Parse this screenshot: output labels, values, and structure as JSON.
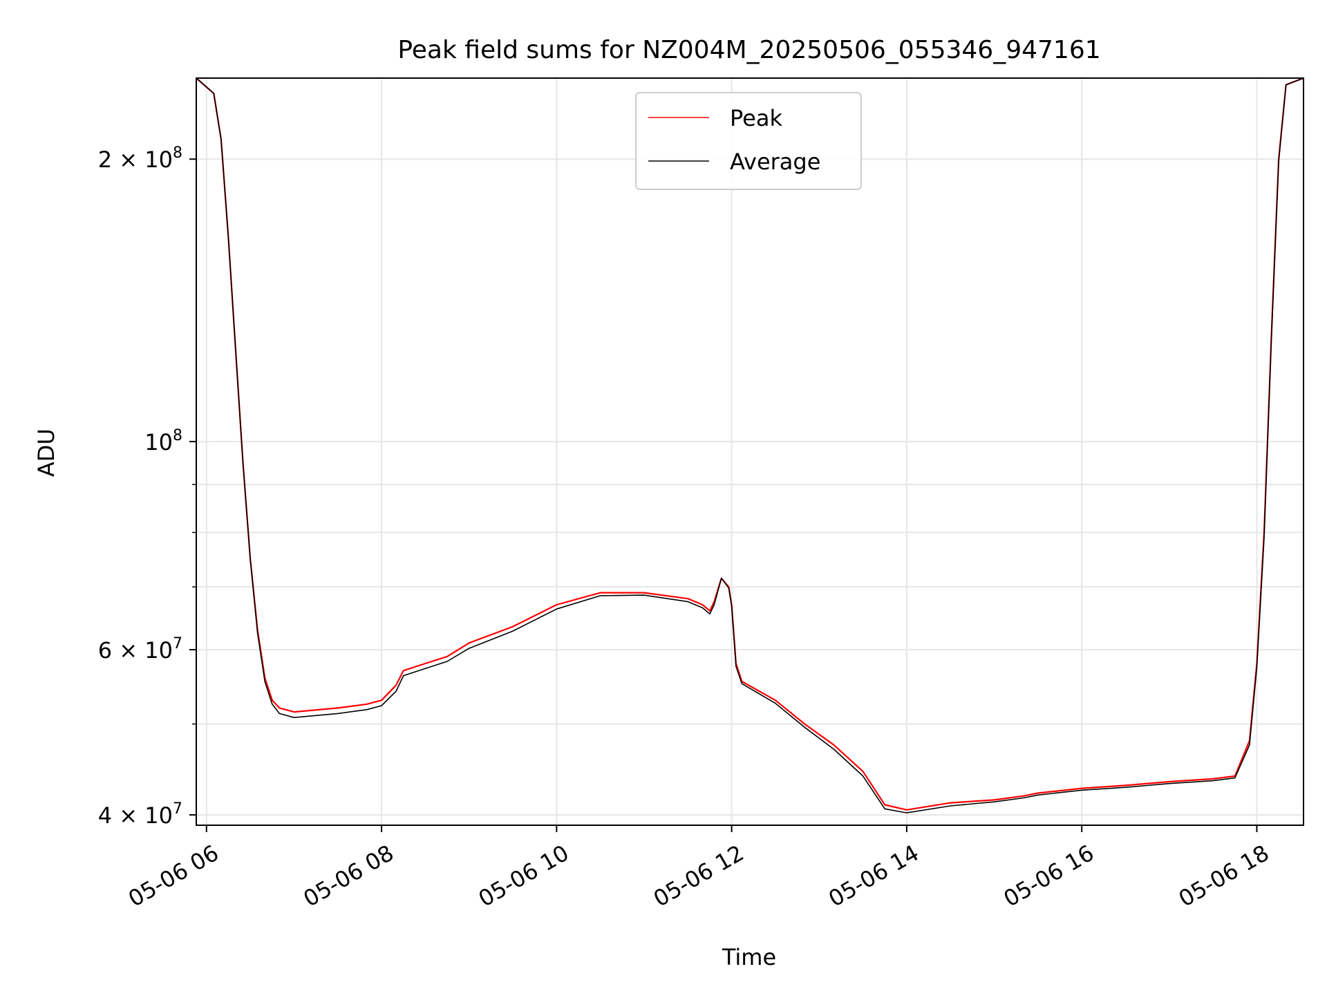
{
  "chart_data": {
    "type": "line",
    "title": "Peak field sums for NZ004M_20250506_055346_947161",
    "xlabel": "Time",
    "ylabel": "ADU",
    "yscale": "log",
    "grid": true,
    "legend": "upper center",
    "xlim": [
      "2025-05-06 05:53",
      "2025-05-06 18:32"
    ],
    "ylim": [
      39000000,
      244000000
    ],
    "x_ticks": [
      {
        "x": "2025-05-06 06:00",
        "label": "05-06 06"
      },
      {
        "x": "2025-05-06 08:00",
        "label": "05-06 08"
      },
      {
        "x": "2025-05-06 10:00",
        "label": "05-06 10"
      },
      {
        "x": "2025-05-06 12:00",
        "label": "05-06 12"
      },
      {
        "x": "2025-05-06 14:00",
        "label": "05-06 14"
      },
      {
        "x": "2025-05-06 16:00",
        "label": "05-06 16"
      },
      {
        "x": "2025-05-06 18:00",
        "label": "05-06 18"
      }
    ],
    "y_ticks": [
      {
        "value": 40000000,
        "label": "4 × 10",
        "exp": "7"
      },
      {
        "value": 60000000,
        "label": "6 × 10",
        "exp": "7"
      },
      {
        "value": 100000000,
        "label": "10",
        "exp": "8"
      },
      {
        "value": 200000000,
        "label": "2 × 10",
        "exp": "8"
      }
    ],
    "y_minor_ticks": [
      50000000,
      70000000,
      80000000,
      90000000
    ],
    "series": [
      {
        "name": "Peak",
        "color": "#ff0000",
        "points": [
          [
            "2025-05-06 05:53",
            244000000
          ],
          [
            "2025-05-06 06:05",
            235000000
          ],
          [
            "2025-05-06 06:10",
            210000000
          ],
          [
            "2025-05-06 06:15",
            165000000
          ],
          [
            "2025-05-06 06:20",
            125000000
          ],
          [
            "2025-05-06 06:25",
            95000000
          ],
          [
            "2025-05-06 06:30",
            75000000
          ],
          [
            "2025-05-06 06:35",
            63000000
          ],
          [
            "2025-05-06 06:40",
            56000000
          ],
          [
            "2025-05-06 06:45",
            53000000
          ],
          [
            "2025-05-06 06:50",
            52000000
          ],
          [
            "2025-05-06 07:00",
            51500000
          ],
          [
            "2025-05-06 07:30",
            52000000
          ],
          [
            "2025-05-06 07:50",
            52500000
          ],
          [
            "2025-05-06 08:00",
            53000000
          ],
          [
            "2025-05-06 08:10",
            55000000
          ],
          [
            "2025-05-06 08:15",
            57000000
          ],
          [
            "2025-05-06 08:30",
            58000000
          ],
          [
            "2025-05-06 08:45",
            59000000
          ],
          [
            "2025-05-06 09:00",
            61000000
          ],
          [
            "2025-05-06 09:30",
            63500000
          ],
          [
            "2025-05-06 10:00",
            67000000
          ],
          [
            "2025-05-06 10:30",
            69000000
          ],
          [
            "2025-05-06 11:00",
            69000000
          ],
          [
            "2025-05-06 11:30",
            68000000
          ],
          [
            "2025-05-06 11:40",
            67000000
          ],
          [
            "2025-05-06 11:45",
            66000000
          ],
          [
            "2025-05-06 11:48",
            67500000
          ],
          [
            "2025-05-06 11:53",
            71500000
          ],
          [
            "2025-05-06 11:58",
            70000000
          ],
          [
            "2025-05-06 12:00",
            67000000
          ],
          [
            "2025-05-06 12:03",
            58000000
          ],
          [
            "2025-05-06 12:07",
            55500000
          ],
          [
            "2025-05-06 12:30",
            53000000
          ],
          [
            "2025-05-06 12:50",
            50000000
          ],
          [
            "2025-05-06 13:10",
            47500000
          ],
          [
            "2025-05-06 13:30",
            44500000
          ],
          [
            "2025-05-06 13:45",
            41000000
          ],
          [
            "2025-05-06 14:00",
            40500000
          ],
          [
            "2025-05-06 14:30",
            41200000
          ],
          [
            "2025-05-06 15:00",
            41500000
          ],
          [
            "2025-05-06 15:20",
            41900000
          ],
          [
            "2025-05-06 15:30",
            42200000
          ],
          [
            "2025-05-06 16:00",
            42700000
          ],
          [
            "2025-05-06 16:30",
            43000000
          ],
          [
            "2025-05-06 17:00",
            43400000
          ],
          [
            "2025-05-06 17:30",
            43700000
          ],
          [
            "2025-05-06 17:45",
            44000000
          ],
          [
            "2025-05-06 17:55",
            48000000
          ],
          [
            "2025-05-06 18:00",
            58000000
          ],
          [
            "2025-05-06 18:05",
            80000000
          ],
          [
            "2025-05-06 18:10",
            130000000
          ],
          [
            "2025-05-06 18:15",
            200000000
          ],
          [
            "2025-05-06 18:20",
            240000000
          ],
          [
            "2025-05-06 18:32",
            244000000
          ]
        ]
      },
      {
        "name": "Average",
        "color": "#000000",
        "points": [
          [
            "2025-05-06 05:53",
            244000000
          ],
          [
            "2025-05-06 06:05",
            235000000
          ],
          [
            "2025-05-06 06:10",
            210000000
          ],
          [
            "2025-05-06 06:15",
            165000000
          ],
          [
            "2025-05-06 06:20",
            125000000
          ],
          [
            "2025-05-06 06:25",
            95000000
          ],
          [
            "2025-05-06 06:30",
            75000000
          ],
          [
            "2025-05-06 06:35",
            62500000
          ],
          [
            "2025-05-06 06:40",
            55500000
          ],
          [
            "2025-05-06 06:45",
            52500000
          ],
          [
            "2025-05-06 06:50",
            51300000
          ],
          [
            "2025-05-06 07:00",
            50800000
          ],
          [
            "2025-05-06 07:30",
            51300000
          ],
          [
            "2025-05-06 07:50",
            51800000
          ],
          [
            "2025-05-06 08:00",
            52300000
          ],
          [
            "2025-05-06 08:10",
            54200000
          ],
          [
            "2025-05-06 08:15",
            56300000
          ],
          [
            "2025-05-06 08:30",
            57300000
          ],
          [
            "2025-05-06 08:45",
            58300000
          ],
          [
            "2025-05-06 09:00",
            60200000
          ],
          [
            "2025-05-06 09:30",
            62800000
          ],
          [
            "2025-05-06 10:00",
            66300000
          ],
          [
            "2025-05-06 10:30",
            68500000
          ],
          [
            "2025-05-06 11:00",
            68600000
          ],
          [
            "2025-05-06 11:30",
            67500000
          ],
          [
            "2025-05-06 11:40",
            66500000
          ],
          [
            "2025-05-06 11:45",
            65500000
          ],
          [
            "2025-05-06 11:48",
            67000000
          ],
          [
            "2025-05-06 11:53",
            71500000
          ],
          [
            "2025-05-06 11:58",
            69800000
          ],
          [
            "2025-05-06 12:00",
            66800000
          ],
          [
            "2025-05-06 12:03",
            57600000
          ],
          [
            "2025-05-06 12:07",
            55200000
          ],
          [
            "2025-05-06 12:30",
            52600000
          ],
          [
            "2025-05-06 12:50",
            49600000
          ],
          [
            "2025-05-06 13:10",
            47000000
          ],
          [
            "2025-05-06 13:30",
            44000000
          ],
          [
            "2025-05-06 13:45",
            40600000
          ],
          [
            "2025-05-06 14:00",
            40200000
          ],
          [
            "2025-05-06 14:30",
            40900000
          ],
          [
            "2025-05-06 15:00",
            41300000
          ],
          [
            "2025-05-06 15:20",
            41700000
          ],
          [
            "2025-05-06 15:30",
            42000000
          ],
          [
            "2025-05-06 16:00",
            42500000
          ],
          [
            "2025-05-06 16:30",
            42800000
          ],
          [
            "2025-05-06 17:00",
            43200000
          ],
          [
            "2025-05-06 17:30",
            43500000
          ],
          [
            "2025-05-06 17:45",
            43800000
          ],
          [
            "2025-05-06 17:55",
            47500000
          ],
          [
            "2025-05-06 18:00",
            57500000
          ],
          [
            "2025-05-06 18:05",
            79000000
          ],
          [
            "2025-05-06 18:10",
            129000000
          ],
          [
            "2025-05-06 18:15",
            199000000
          ],
          [
            "2025-05-06 18:20",
            240000000
          ],
          [
            "2025-05-06 18:32",
            244000000
          ]
        ]
      }
    ]
  }
}
